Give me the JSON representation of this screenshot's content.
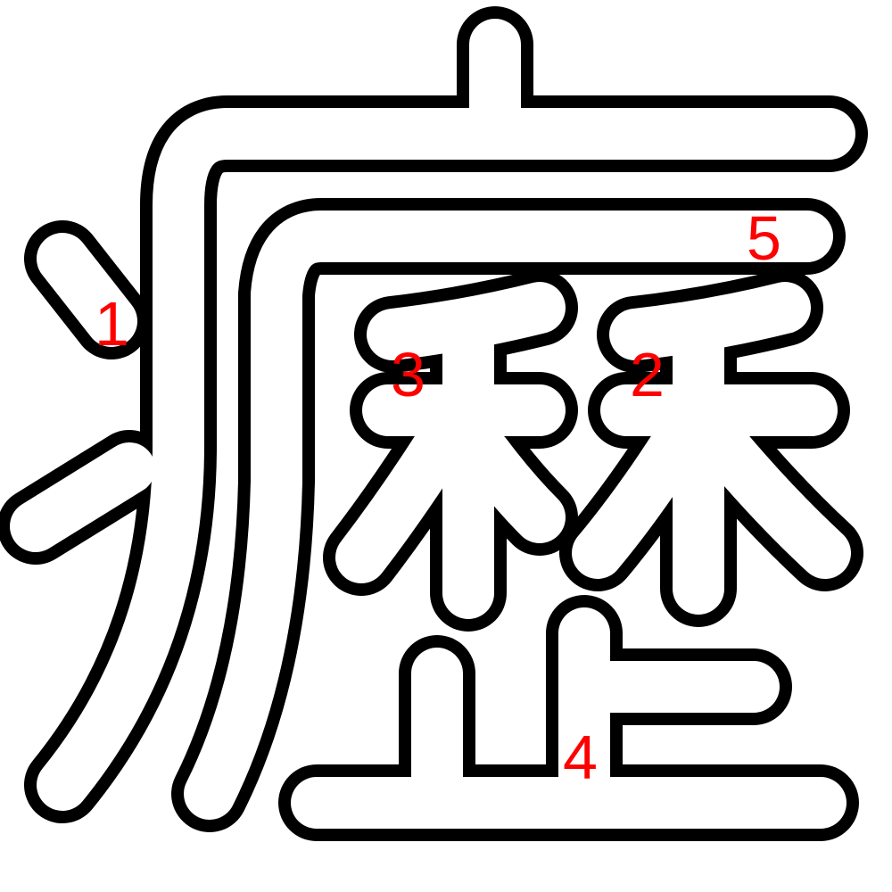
{
  "character": "瀝",
  "colors": {
    "outline": "#000000",
    "fill": "#ffffff",
    "label": "#ff0000"
  },
  "stroke_labels": [
    {
      "id": "1",
      "text": "1"
    },
    {
      "id": "2",
      "text": "2"
    },
    {
      "id": "3",
      "text": "3"
    },
    {
      "id": "4",
      "text": "4"
    },
    {
      "id": "5",
      "text": "5"
    }
  ]
}
